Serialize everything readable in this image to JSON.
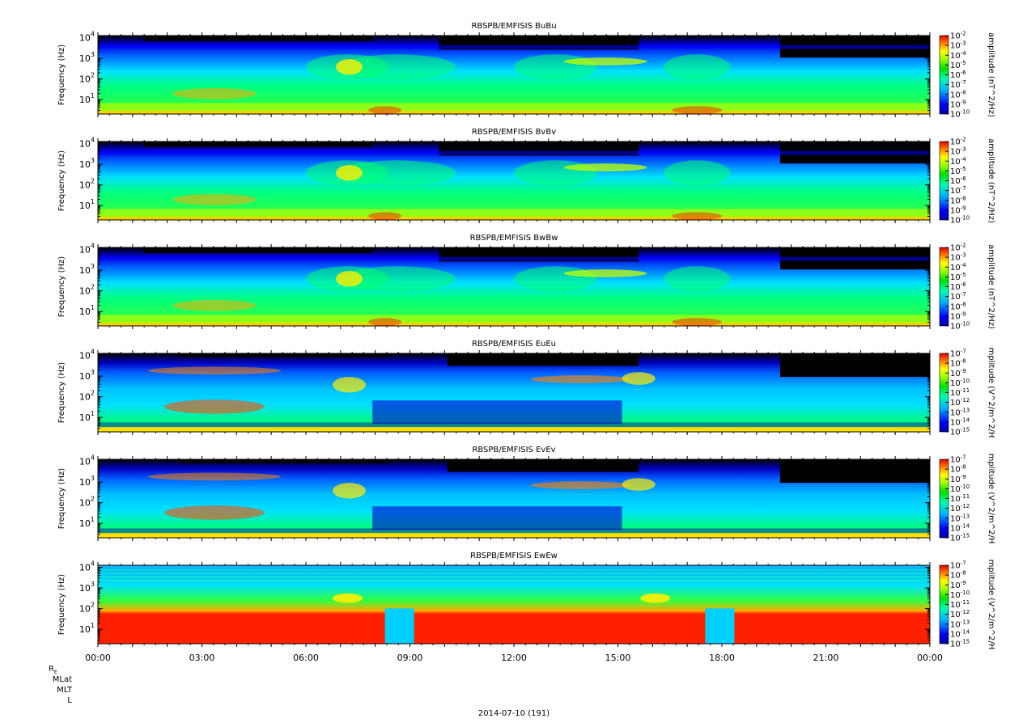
{
  "chart_data": [
    {
      "type": "heatmap",
      "title": "RBSPB/EMFISIS  BuBu",
      "ylabel": "Frequency (Hz)",
      "yscale": "log",
      "yticks": [
        "10",
        "10",
        "10",
        "10"
      ],
      "yexp": [
        "1",
        "2",
        "3",
        "4"
      ],
      "zlabel": "amplitude (nT^2/Hz)",
      "zticks": [
        "10",
        "10",
        "10",
        "10",
        "10",
        "10",
        "10",
        "10",
        "10"
      ],
      "zexp": [
        "-2",
        "-3",
        "-4",
        "-5",
        "-6",
        "-7",
        "-8",
        "-9",
        "-10"
      ],
      "zscale": "log",
      "variant": "b1"
    },
    {
      "type": "heatmap",
      "title": "RBSPB/EMFISIS  BvBv",
      "ylabel": "Frequency (Hz)",
      "yscale": "log",
      "yticks": [
        "10",
        "10",
        "10",
        "10"
      ],
      "yexp": [
        "1",
        "2",
        "3",
        "4"
      ],
      "zlabel": "amplitude (nT^2/Hz)",
      "zticks": [
        "10",
        "10",
        "10",
        "10",
        "10",
        "10",
        "10",
        "10",
        "10"
      ],
      "zexp": [
        "-2",
        "-3",
        "-4",
        "-5",
        "-6",
        "-7",
        "-8",
        "-9",
        "-10"
      ],
      "zscale": "log",
      "variant": "b2"
    },
    {
      "type": "heatmap",
      "title": "RBSPB/EMFISIS  BwBw",
      "ylabel": "Frequency (Hz)",
      "yscale": "log",
      "yticks": [
        "10",
        "10",
        "10",
        "10"
      ],
      "yexp": [
        "1",
        "2",
        "3",
        "4"
      ],
      "zlabel": "amplitude (nT^2/Hz)",
      "zticks": [
        "10",
        "10",
        "10",
        "10",
        "10",
        "10",
        "10",
        "10",
        "10"
      ],
      "zexp": [
        "-2",
        "-3",
        "-4",
        "-5",
        "-6",
        "-7",
        "-8",
        "-9",
        "-10"
      ],
      "zscale": "log",
      "variant": "b3"
    },
    {
      "type": "heatmap",
      "title": "RBSPB/EMFISIS  EuEu",
      "ylabel": "Frequency (Hz)",
      "yscale": "log",
      "yticks": [
        "10",
        "10",
        "10",
        "10"
      ],
      "yexp": [
        "1",
        "2",
        "3",
        "4"
      ],
      "zlabel": "mplitude (V^2/m^2/H",
      "zticks": [
        "10",
        "10",
        "10",
        "10",
        "10",
        "10",
        "10",
        "10",
        "10"
      ],
      "zexp": [
        "-7",
        "-8",
        "-9",
        "-10",
        "-11",
        "-12",
        "-13",
        "-14",
        "-15"
      ],
      "zscale": "log",
      "variant": "e1"
    },
    {
      "type": "heatmap",
      "title": "RBSPB/EMFISIS  EvEv",
      "ylabel": "Frequency (Hz)",
      "yscale": "log",
      "yticks": [
        "10",
        "10",
        "10",
        "10"
      ],
      "yexp": [
        "1",
        "2",
        "3",
        "4"
      ],
      "zlabel": "mplitude (V^2/m^2/H",
      "zticks": [
        "10",
        "10",
        "10",
        "10",
        "10",
        "10",
        "10",
        "10",
        "10"
      ],
      "zexp": [
        "-7",
        "-8",
        "-9",
        "-10",
        "-11",
        "-12",
        "-13",
        "-14",
        "-15"
      ],
      "zscale": "log",
      "variant": "e2"
    },
    {
      "type": "heatmap",
      "title": "RBSPB/EMFISIS  EwEw",
      "ylabel": "Frequency (Hz)",
      "yscale": "log",
      "yticks": [
        "10",
        "10",
        "10",
        "10"
      ],
      "yexp": [
        "1",
        "2",
        "3",
        "4"
      ],
      "zlabel": "mplitude (V^2/m^2/H",
      "zticks": [
        "10",
        "10",
        "10",
        "10",
        "10",
        "10",
        "10",
        "10",
        "10"
      ],
      "zexp": [
        "-7",
        "-8",
        "-9",
        "-10",
        "-11",
        "-12",
        "-13",
        "-14",
        "-15"
      ],
      "zscale": "log",
      "variant": "e3"
    }
  ],
  "x_axis": {
    "ticks": [
      "00:00",
      "03:00",
      "06:00",
      "09:00",
      "12:00",
      "15:00",
      "18:00",
      "21:00",
      "00:00"
    ]
  },
  "bottom_labels": {
    "re_main": "R",
    "re_sub": "E",
    "mlat": "MLat",
    "mlt": "MLT",
    "l": "L"
  },
  "date_label": "2014-07-10 (191)"
}
